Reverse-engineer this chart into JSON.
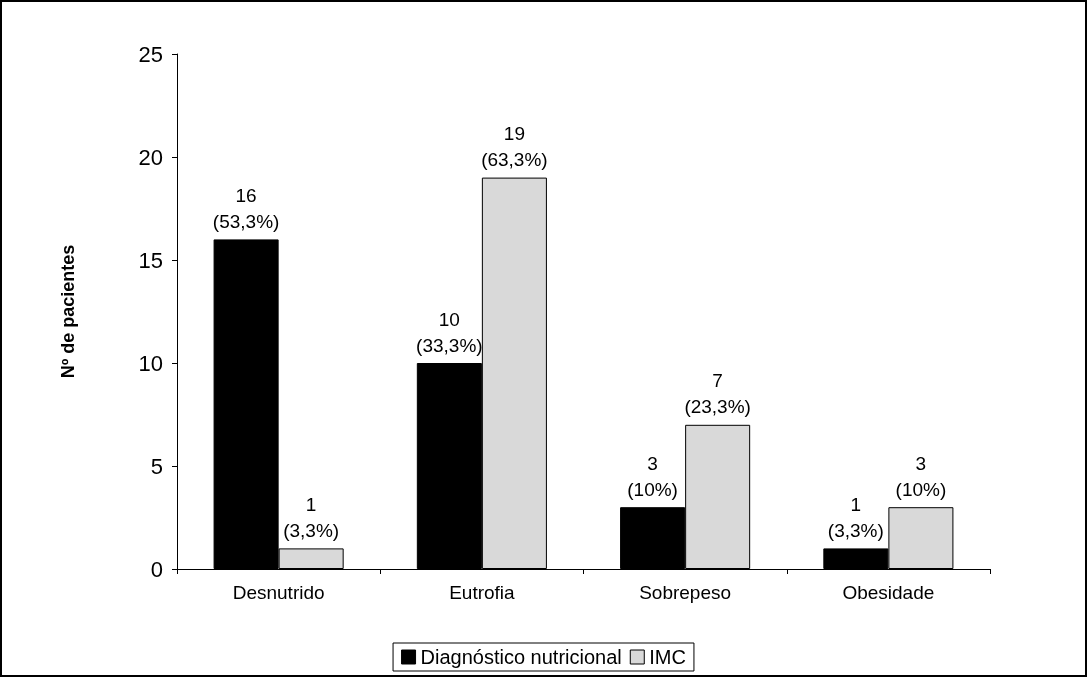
{
  "chart_data": {
    "type": "bar",
    "ylabel": "Nº de pacientes",
    "categories": [
      "Desnutrido",
      "Eutrofia",
      "Sobrepeso",
      "Obesidade"
    ],
    "series": [
      {
        "name": "Diagnóstico nutricional",
        "color": "#000000",
        "values": [
          16,
          10,
          3,
          1
        ],
        "value_labels": [
          "16\n(53,3%)",
          "10\n(33,3%)",
          "3\n(10%)",
          "1\n(3,3%)"
        ]
      },
      {
        "name": "IMC",
        "color": "#d9d9d9",
        "values": [
          1,
          19,
          7,
          3
        ],
        "value_labels": [
          "1\n(3,3%)",
          "19\n(63,3%)",
          "7\n(23,3%)",
          "3\n(10%)"
        ]
      }
    ],
    "ylim": [
      0,
      25
    ],
    "yticks": [
      0,
      5,
      10,
      15,
      20,
      25
    ],
    "grid": false,
    "legend": "bottom"
  }
}
